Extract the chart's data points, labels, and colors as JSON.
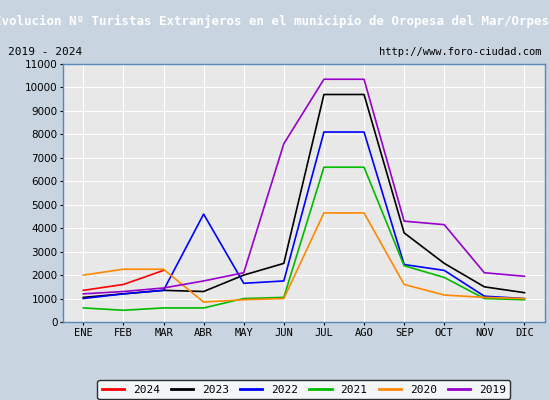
{
  "title": "Evolucion Nº Turistas Extranjeros en el municipio de Oropesa del Mar/Orpesa",
  "subtitle_left": "2019 - 2024",
  "subtitle_right": "http://www.foro-ciudad.com",
  "months": [
    "ENE",
    "FEB",
    "MAR",
    "ABR",
    "MAY",
    "JUN",
    "JUL",
    "AGO",
    "SEP",
    "OCT",
    "NOV",
    "DIC"
  ],
  "series": {
    "2024": {
      "color": "#ff0000",
      "data": [
        1350,
        1600,
        2200,
        null,
        null,
        null,
        null,
        null,
        null,
        null,
        null,
        null
      ]
    },
    "2023": {
      "color": "#000000",
      "data": [
        1050,
        1200,
        1350,
        1300,
        2000,
        2500,
        9700,
        9700,
        3800,
        2500,
        1500,
        1250
      ]
    },
    "2022": {
      "color": "#0000ff",
      "data": [
        1000,
        1200,
        1350,
        4600,
        1650,
        1750,
        8100,
        8100,
        2450,
        2200,
        1100,
        1000
      ]
    },
    "2021": {
      "color": "#00bb00",
      "data": [
        600,
        500,
        600,
        600,
        1000,
        1050,
        6600,
        6600,
        2400,
        1900,
        1000,
        950
      ]
    },
    "2020": {
      "color": "#ff8800",
      "data": [
        2000,
        2250,
        2250,
        850,
        950,
        1000,
        4650,
        4650,
        1600,
        1150,
        1050,
        1000
      ]
    },
    "2019": {
      "color": "#9900cc",
      "data": [
        1200,
        1300,
        1450,
        1750,
        2100,
        7600,
        10350,
        10350,
        4300,
        4150,
        2100,
        1950
      ]
    }
  },
  "ylim": [
    0,
    11000
  ],
  "yticks": [
    0,
    1000,
    2000,
    3000,
    4000,
    5000,
    6000,
    7000,
    8000,
    9000,
    10000,
    11000
  ],
  "title_bg_color": "#4a90d9",
  "title_text_color": "#ffffff",
  "plot_bg_color": "#e8e8e8",
  "outer_bg_color": "#c8d4e0",
  "grid_color": "#ffffff",
  "border_color": "#5588bb",
  "subtitle_bg_color": "#f0f0f0"
}
